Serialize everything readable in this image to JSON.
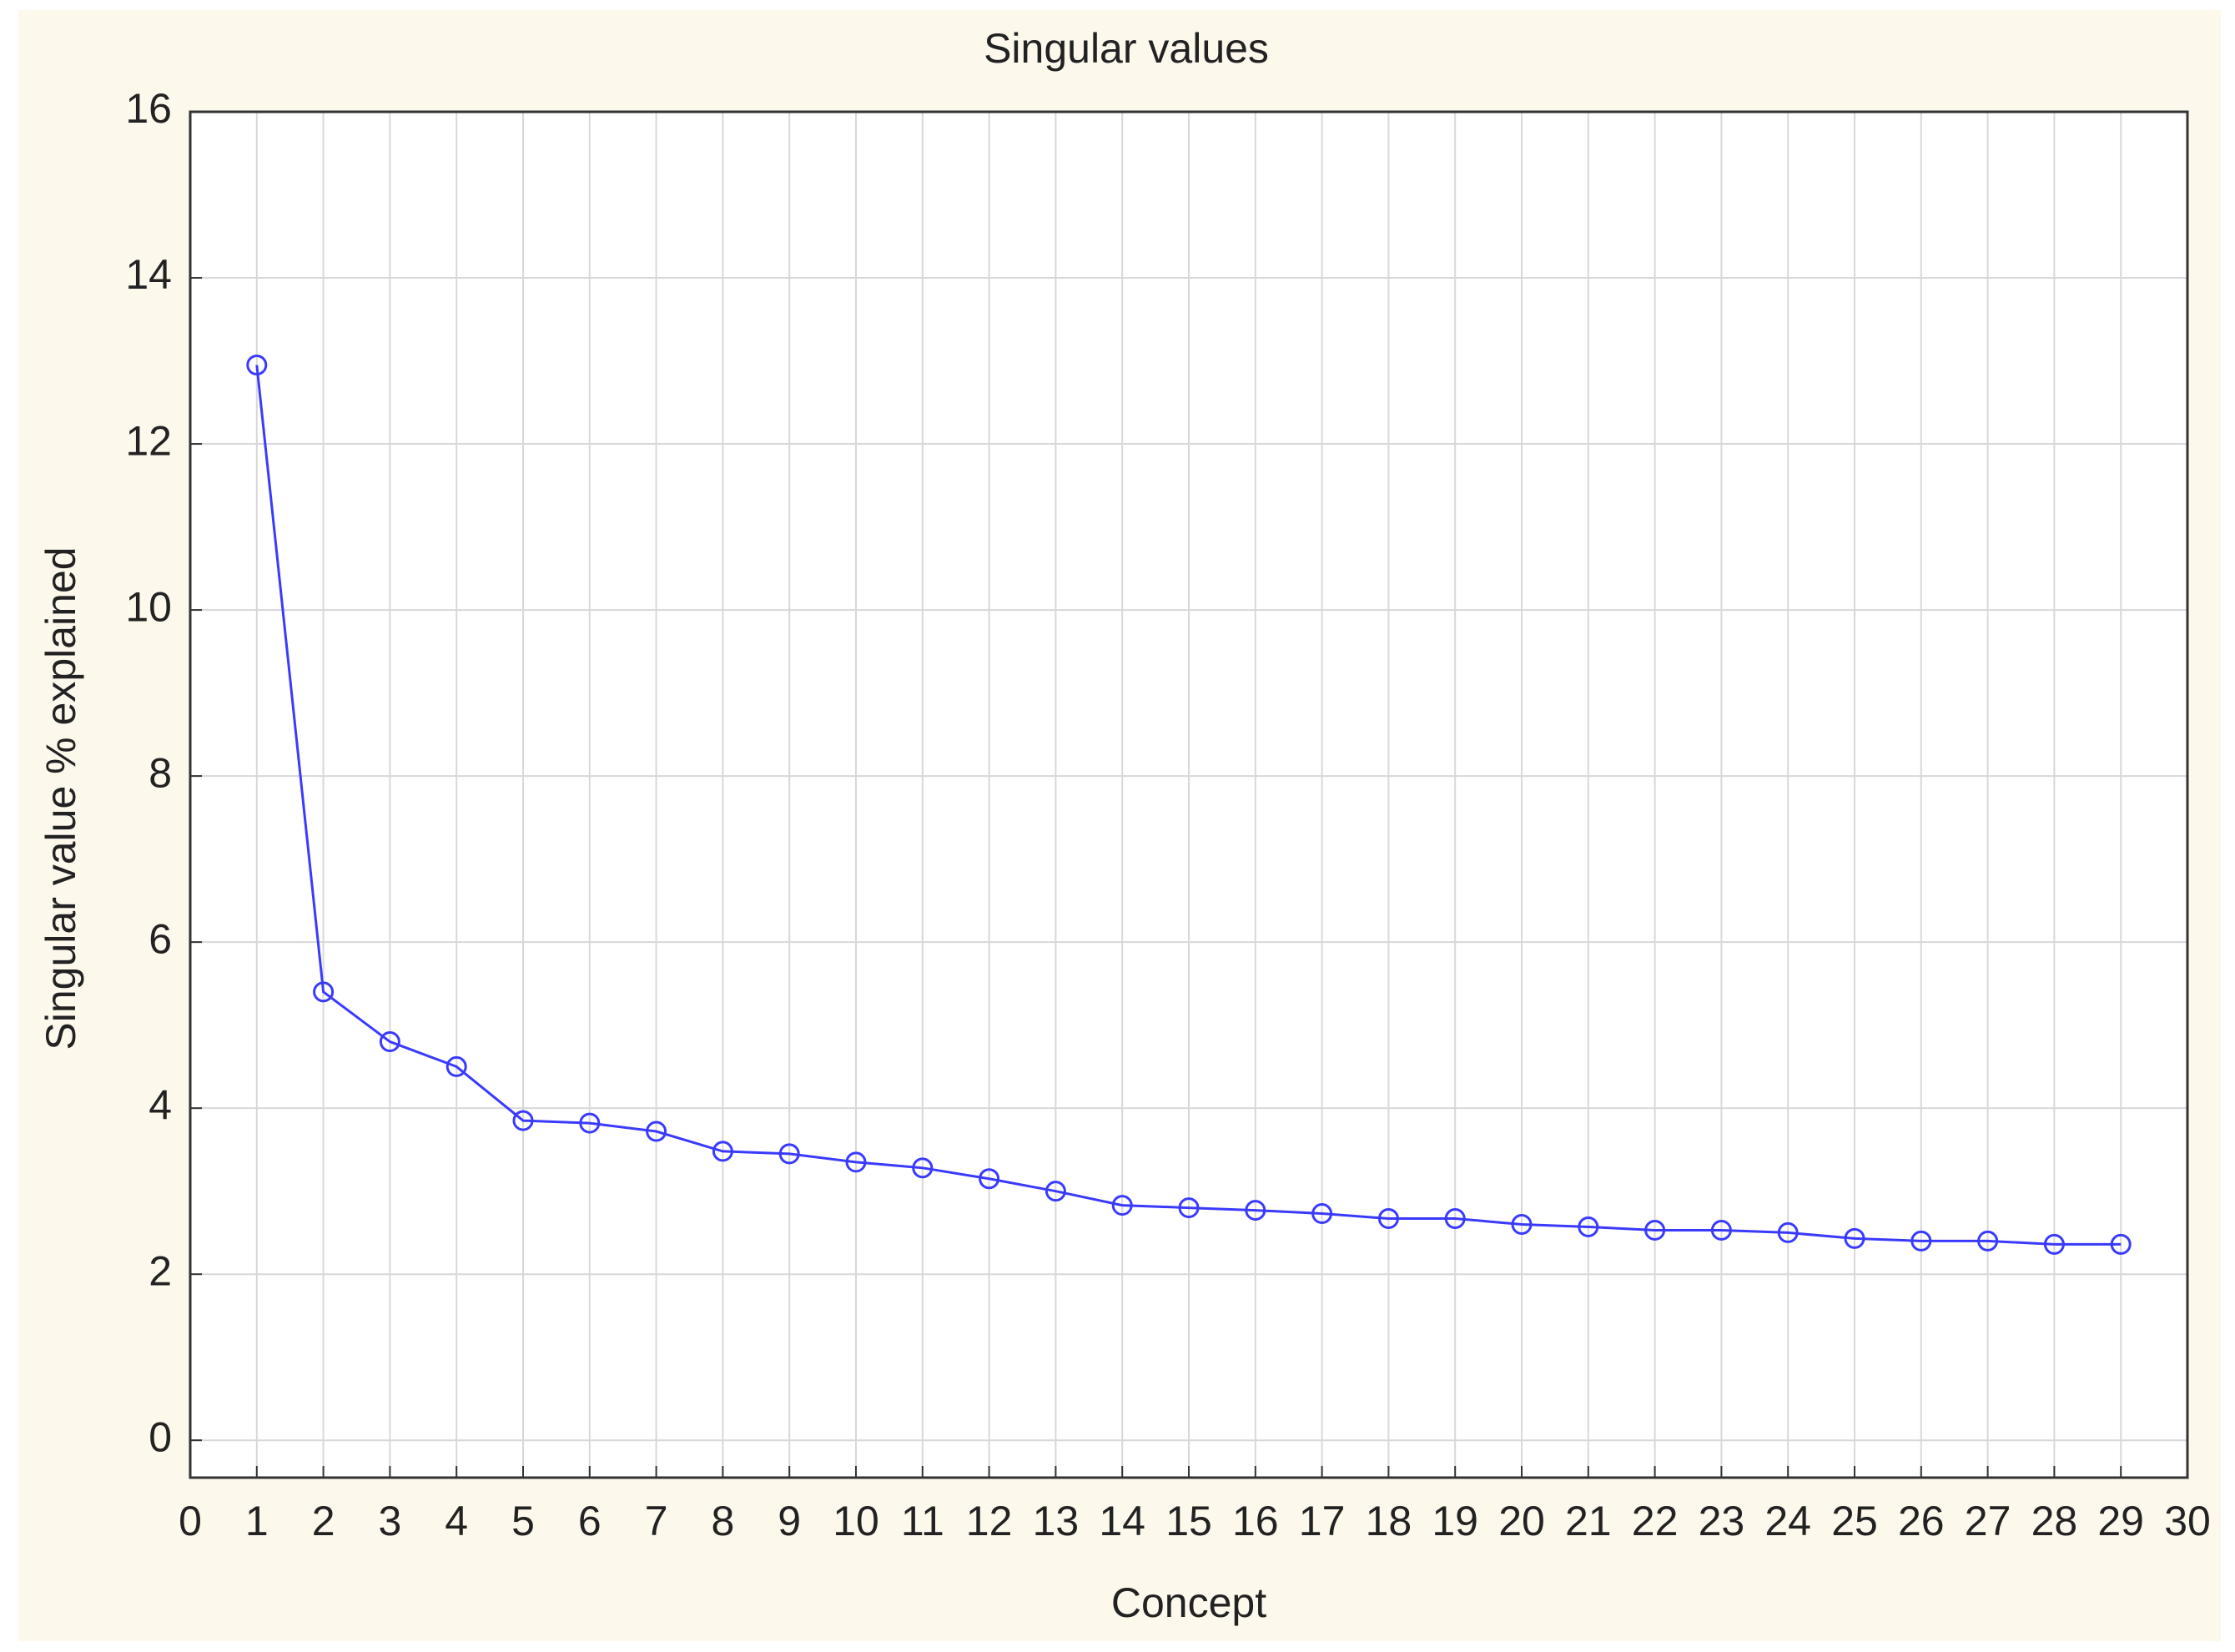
{
  "chart_data": {
    "type": "line",
    "title": "Singular values",
    "x_label": "Concept",
    "y_label": "Singular value % explained",
    "x": [
      1,
      2,
      3,
      4,
      5,
      6,
      7,
      8,
      9,
      10,
      11,
      12,
      13,
      14,
      15,
      16,
      17,
      18,
      19,
      20,
      21,
      22,
      23,
      24,
      25,
      26,
      27,
      28,
      29
    ],
    "series": [
      {
        "name": "Singular value % explained",
        "color": "#3a3aff",
        "values": [
          12.95,
          5.4,
          4.8,
          4.5,
          3.85,
          3.82,
          3.72,
          3.48,
          3.45,
          3.35,
          3.28,
          3.15,
          3.0,
          2.83,
          2.8,
          2.77,
          2.73,
          2.67,
          2.67,
          2.6,
          2.57,
          2.53,
          2.53,
          2.5,
          2.43,
          2.4,
          2.4,
          2.36,
          2.36
        ]
      }
    ],
    "xlim": [
      0,
      30
    ],
    "xticks": [
      0,
      1,
      2,
      3,
      4,
      5,
      6,
      7,
      8,
      9,
      10,
      11,
      12,
      13,
      14,
      15,
      16,
      17,
      18,
      19,
      20,
      21,
      22,
      23,
      24,
      25,
      26,
      27,
      28,
      29,
      30
    ],
    "ylim": [
      -0.45,
      16
    ],
    "yticks": [
      0,
      2,
      4,
      6,
      8,
      10,
      12,
      14,
      16
    ],
    "grid": true
  }
}
